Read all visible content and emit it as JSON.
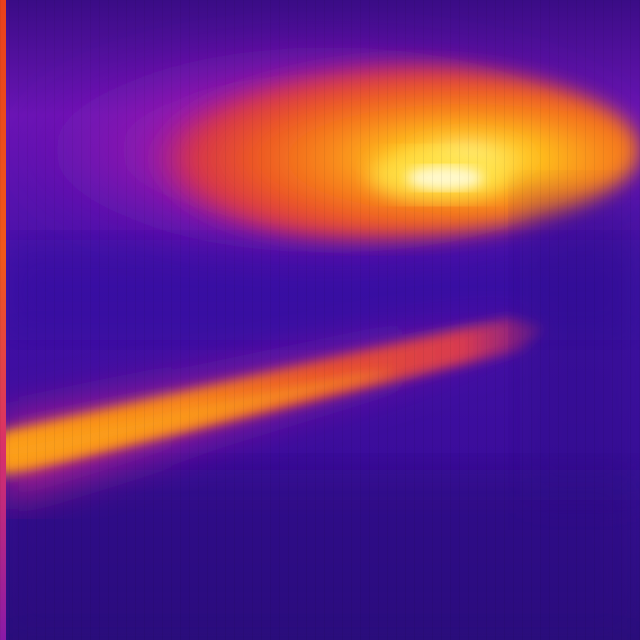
{
  "palette": {
    "background_deep": "#2c0a78",
    "background_mid": "#4a12a8",
    "magenta": "#b01ab8",
    "hot_red": "#e23a3a",
    "hot_orange": "#f26a1e",
    "hot_amber": "#fb9a18",
    "hot_yellow": "#ffd21a",
    "hot_white": "#fff6b0"
  },
  "colormap": "thermal-iron",
  "regions": [
    "upper-hot-region",
    "diagonal-warm-band",
    "cool-background"
  ]
}
